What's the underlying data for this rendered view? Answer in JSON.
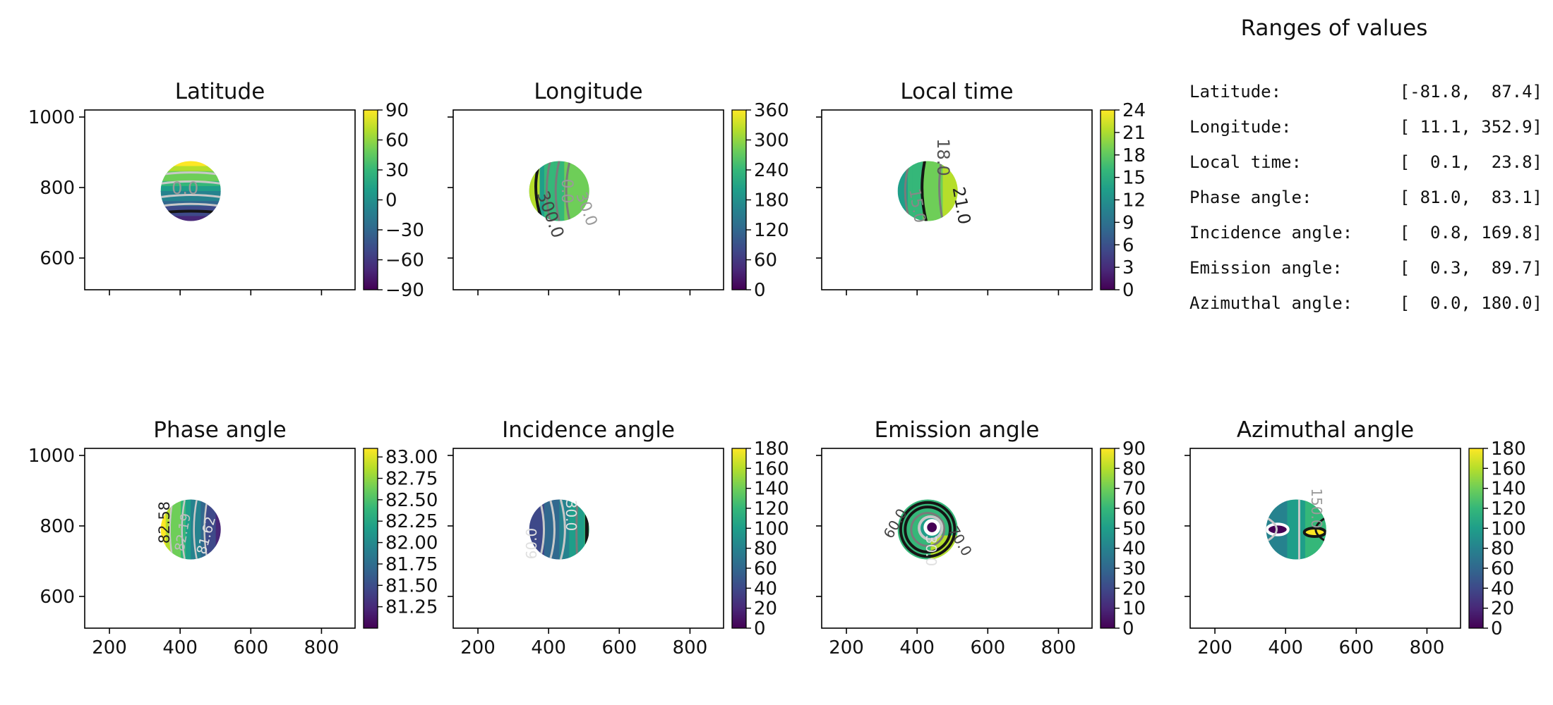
{
  "colors": {
    "viridis": [
      "#440154",
      "#482878",
      "#3e4989",
      "#31688e",
      "#26828e",
      "#1f9e89",
      "#35b779",
      "#6ece58",
      "#b5de2b",
      "#fde725"
    ],
    "contour_light": "#c8c8c8",
    "contour_mid": "#7a7a7a",
    "contour_dark": "#151515"
  },
  "ranges_panel": {
    "title": "Ranges of values",
    "rows": [
      {
        "label": "Latitude:",
        "value": "[-81.8,  87.4]"
      },
      {
        "label": "Longitude:",
        "value": "[ 11.1, 352.9]"
      },
      {
        "label": "Local time:",
        "value": "[  0.1,  23.8]"
      },
      {
        "label": "Phase angle:",
        "value": "[ 81.0,  83.1]"
      },
      {
        "label": "Incidence angle:",
        "value": "[  0.8, 169.8]"
      },
      {
        "label": "Emission angle:",
        "value": "[  0.3,  89.7]"
      },
      {
        "label": "Azimuthal angle:",
        "value": "[  0.0, 180.0]"
      }
    ]
  },
  "chart_data": [
    {
      "type": "heatmap",
      "title": "Latitude",
      "x_range": [
        130,
        895
      ],
      "y_range": [
        510,
        1020
      ],
      "x_ticks": [
        200,
        400,
        600,
        800
      ],
      "show_x_ticklabels": false,
      "y_ticks": [
        600,
        800,
        1000
      ],
      "show_y_ticklabels": true,
      "disk": {
        "center": [
          430,
          790
        ],
        "radius": 85,
        "field": "latitude"
      },
      "colorbar": {
        "min": -90,
        "max": 90,
        "ticks": [
          "90",
          "60",
          "30",
          "0",
          "−30",
          "−60",
          "−90"
        ],
        "tick_values": [
          90,
          60,
          30,
          0,
          -30,
          -60,
          -90
        ]
      },
      "contour_labels": [
        "0.0"
      ]
    },
    {
      "type": "heatmap",
      "title": "Longitude",
      "x_range": [
        130,
        895
      ],
      "y_range": [
        510,
        1020
      ],
      "x_ticks": [
        200,
        400,
        600,
        800
      ],
      "show_x_ticklabels": false,
      "y_ticks": [
        600,
        800,
        1000
      ],
      "show_y_ticklabels": false,
      "disk": {
        "center": [
          430,
          790
        ],
        "radius": 85,
        "field": "longitude"
      },
      "colorbar": {
        "min": 0,
        "max": 360,
        "ticks": [
          "360",
          "300",
          "240",
          "180",
          "120",
          "60",
          "0"
        ],
        "tick_values": [
          360,
          300,
          240,
          180,
          120,
          60,
          0
        ]
      },
      "contour_labels": [
        "0.0",
        "30.0",
        "300.0"
      ]
    },
    {
      "type": "heatmap",
      "title": "Local time",
      "x_range": [
        130,
        895
      ],
      "y_range": [
        510,
        1020
      ],
      "x_ticks": [
        200,
        400,
        600,
        800
      ],
      "show_x_ticklabels": false,
      "y_ticks": [
        600,
        800,
        1000
      ],
      "show_y_ticklabels": false,
      "disk": {
        "center": [
          430,
          790
        ],
        "radius": 85,
        "field": "local_time"
      },
      "colorbar": {
        "min": 0,
        "max": 24,
        "ticks": [
          "24",
          "21",
          "18",
          "15",
          "12",
          "9",
          "6",
          "3",
          "0"
        ],
        "tick_values": [
          24,
          21,
          18,
          15,
          12,
          9,
          6,
          3,
          0
        ]
      },
      "contour_labels": [
        "18.0",
        "21.0",
        "15.0"
      ]
    },
    {
      "type": "heatmap",
      "title": "Phase angle",
      "x_range": [
        130,
        895
      ],
      "y_range": [
        510,
        1020
      ],
      "x_ticks": [
        200,
        400,
        600,
        800
      ],
      "show_x_ticklabels": true,
      "y_ticks": [
        600,
        800,
        1000
      ],
      "show_y_ticklabels": true,
      "disk": {
        "center": [
          430,
          790
        ],
        "radius": 85,
        "field": "phase"
      },
      "colorbar": {
        "min": 81.0,
        "max": 83.1,
        "ticks": [
          "83.00",
          "82.75",
          "82.50",
          "82.25",
          "82.00",
          "81.75",
          "81.50",
          "81.25"
        ],
        "tick_values": [
          83.0,
          82.75,
          82.5,
          82.25,
          82.0,
          81.75,
          81.5,
          81.25
        ]
      },
      "contour_labels": [
        "82.58",
        "82.19",
        "81.62"
      ]
    },
    {
      "type": "heatmap",
      "title": "Incidence angle",
      "x_range": [
        130,
        895
      ],
      "y_range": [
        510,
        1020
      ],
      "x_ticks": [
        200,
        400,
        600,
        800
      ],
      "show_x_ticklabels": true,
      "y_ticks": [
        600,
        800,
        1000
      ],
      "show_y_ticklabels": false,
      "disk": {
        "center": [
          430,
          790
        ],
        "radius": 85,
        "field": "incidence"
      },
      "colorbar": {
        "min": 0,
        "max": 180,
        "ticks": [
          "180",
          "160",
          "140",
          "120",
          "100",
          "80",
          "60",
          "40",
          "20",
          "0"
        ],
        "tick_values": [
          180,
          160,
          140,
          120,
          100,
          80,
          60,
          40,
          20,
          0
        ]
      },
      "contour_labels": [
        "30.0",
        "60.0"
      ]
    },
    {
      "type": "heatmap",
      "title": "Emission angle",
      "x_range": [
        130,
        895
      ],
      "y_range": [
        510,
        1020
      ],
      "x_ticks": [
        200,
        400,
        600,
        800
      ],
      "show_x_ticklabels": true,
      "y_ticks": [
        600,
        800,
        1000
      ],
      "show_y_ticklabels": false,
      "disk": {
        "center": [
          430,
          790
        ],
        "radius": 85,
        "field": "emission"
      },
      "colorbar": {
        "min": 0,
        "max": 90,
        "ticks": [
          "90",
          "80",
          "70",
          "60",
          "50",
          "40",
          "30",
          "20",
          "10",
          "0"
        ],
        "tick_values": [
          90,
          80,
          70,
          60,
          50,
          40,
          30,
          20,
          10,
          0
        ]
      },
      "contour_labels": [
        "30.0",
        "60.0",
        "70.0"
      ]
    },
    {
      "type": "heatmap",
      "title": "Azimuthal angle",
      "x_range": [
        130,
        895
      ],
      "y_range": [
        510,
        1020
      ],
      "x_ticks": [
        200,
        400,
        600,
        800
      ],
      "show_x_ticklabels": true,
      "y_ticks": [
        600,
        800,
        1000
      ],
      "show_y_ticklabels": false,
      "disk": {
        "center": [
          430,
          790
        ],
        "radius": 85,
        "field": "azimuth"
      },
      "colorbar": {
        "min": 0,
        "max": 180,
        "ticks": [
          "180",
          "160",
          "140",
          "120",
          "100",
          "80",
          "60",
          "40",
          "20",
          "0"
        ],
        "tick_values": [
          180,
          160,
          140,
          120,
          100,
          80,
          60,
          40,
          20,
          0
        ]
      },
      "contour_labels": [
        "150.0"
      ]
    }
  ]
}
